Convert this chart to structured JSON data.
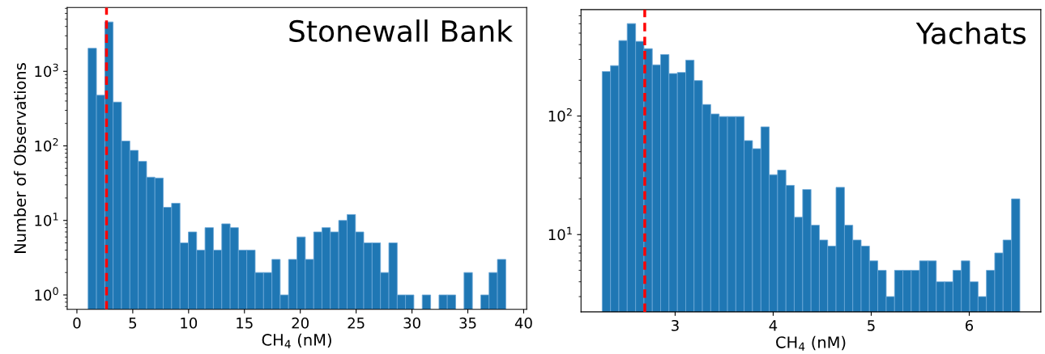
{
  "chart_data": [
    {
      "type": "histogram",
      "title": "Stonewall Bank",
      "xlabel": "CH$_{4}$ (nM)",
      "ylabel": "Number of Observations",
      "color": "#1f77b4",
      "log": "y",
      "grid": false,
      "bins": [
        1.0,
        1.75,
        2.5,
        3.24,
        3.99,
        4.74,
        5.49,
        6.24,
        6.98,
        7.73,
        8.48,
        9.23,
        9.98,
        10.72,
        11.47,
        12.22,
        12.97,
        13.72,
        14.46,
        15.21,
        15.96,
        16.71,
        17.46,
        18.2,
        18.95,
        19.7,
        20.45,
        21.2,
        21.94,
        22.69,
        23.44,
        24.19,
        24.94,
        25.68,
        26.43,
        27.18,
        27.93,
        28.68,
        29.42,
        30.17,
        30.92,
        31.67,
        32.42,
        33.16,
        33.91,
        34.66,
        35.41,
        36.16,
        36.9,
        37.65,
        38.4
      ],
      "values": [
        2040,
        478,
        4600,
        387,
        116,
        87,
        62,
        38,
        37,
        15,
        17,
        5,
        7,
        4,
        8,
        4,
        9,
        8,
        4,
        4,
        2,
        2,
        3,
        1,
        3,
        6,
        3,
        7,
        8,
        7,
        10,
        12,
        7,
        5,
        5,
        2,
        5,
        1,
        1,
        null,
        1,
        null,
        1,
        1,
        null,
        2,
        null,
        1,
        2,
        3
      ],
      "xlim": [
        -0.87,
        40.27
      ],
      "xticks": [
        0,
        5,
        10,
        15,
        20,
        25,
        30,
        35,
        40
      ],
      "ylim": [
        0.64,
        7200
      ],
      "yticks": [
        {
          "value": 1,
          "label": "10$^{0}$"
        },
        {
          "value": 10,
          "label": "10$^{1}$"
        },
        {
          "value": 100,
          "label": "10$^{2}$"
        },
        {
          "value": 1000,
          "label": "10$^{3}$"
        }
      ],
      "ref_lines": [
        {
          "axis": "x",
          "value": 2.65,
          "color": "#ff0000",
          "line_style": "dashed"
        }
      ]
    },
    {
      "type": "histogram",
      "title": "Yachats",
      "xlabel": "CH$_{4}$ (nM)",
      "color": "#1f77b4",
      "log": "y",
      "grid": false,
      "bins": [
        2.256,
        2.341,
        2.426,
        2.511,
        2.597,
        2.682,
        2.767,
        2.852,
        2.937,
        3.023,
        3.108,
        3.193,
        3.278,
        3.363,
        3.449,
        3.534,
        3.619,
        3.704,
        3.789,
        3.875,
        3.96,
        4.045,
        4.13,
        4.215,
        4.301,
        4.386,
        4.471,
        4.556,
        4.641,
        4.727,
        4.812,
        4.897,
        4.982,
        5.067,
        5.153,
        5.238,
        5.323,
        5.408,
        5.493,
        5.579,
        5.664,
        5.749,
        5.834,
        5.919,
        6.005,
        6.09,
        6.175,
        6.26,
        6.345,
        6.431,
        6.516
      ],
      "values": [
        237,
        266,
        433,
        602,
        426,
        370,
        270,
        330,
        228,
        233,
        296,
        199,
        125,
        104,
        99,
        99,
        99,
        62,
        53,
        81,
        32,
        35,
        26,
        14,
        24,
        12,
        9,
        8,
        25,
        12,
        9,
        8,
        6,
        5,
        3,
        5,
        5,
        5,
        6,
        6,
        4,
        4,
        5,
        6,
        4,
        3,
        5,
        7,
        9,
        20
      ],
      "xlim": [
        2.04,
        6.73
      ],
      "xticks": [
        3,
        4,
        5,
        6
      ],
      "ylim": [
        2.23,
        790
      ],
      "yticks": [
        {
          "value": 10,
          "label": "10$^{1}$"
        },
        {
          "value": 100,
          "label": "10$^{2}$"
        }
      ],
      "ref_lines": [
        {
          "axis": "x",
          "value": 2.69,
          "color": "#ff0000",
          "line_style": "dashed"
        }
      ]
    }
  ]
}
